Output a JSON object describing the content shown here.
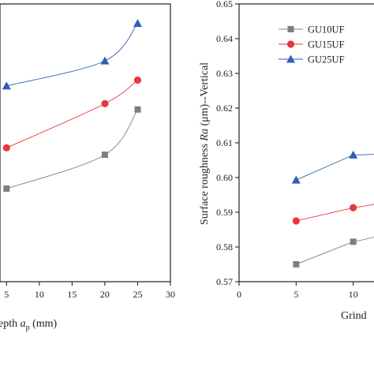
{
  "chart_data": [
    {
      "type": "line",
      "title": "",
      "xlabel_parts": {
        "pre": "epth ",
        "var": "a",
        "sub": "p",
        "post": " (mm)"
      },
      "ylabel": "",
      "x_ticks": [
        5,
        10,
        15,
        20,
        25,
        30
      ],
      "x_tick_labels": [
        "5",
        "10",
        "15",
        "20",
        "25",
        "30"
      ],
      "xlim": [
        4,
        30
      ],
      "ylim": [
        0,
        1
      ],
      "grid": false,
      "series": [
        {
          "name": "GU10UF",
          "color": "#7f7f7f",
          "marker": "square",
          "x": [
            5,
            20,
            25
          ],
          "y": [
            0.335,
            0.457,
            0.62
          ]
        },
        {
          "name": "GU15UF",
          "color": "#e8383d",
          "marker": "circle",
          "x": [
            5,
            20,
            25
          ],
          "y": [
            0.482,
            0.641,
            0.726
          ]
        },
        {
          "name": "GU25UF",
          "color": "#2f5fb0",
          "marker": "triangle",
          "x": [
            5,
            20,
            25
          ],
          "y": [
            0.705,
            0.795,
            0.93
          ]
        }
      ]
    },
    {
      "type": "line",
      "title": "",
      "xlabel": "Grind",
      "ylabel_parts": {
        "pre": "Surface roughness ",
        "var": "Ra",
        "post": " (μm)--Vertical"
      },
      "x_ticks": [
        0,
        5,
        10
      ],
      "x_tick_labels": [
        "0",
        "5",
        "10"
      ],
      "y_ticks": [
        0.57,
        0.58,
        0.59,
        0.6,
        0.61,
        0.62,
        0.63,
        0.64,
        0.65
      ],
      "y_tick_labels": [
        "0.57",
        "0.58",
        "0.59",
        "0.60",
        "0.61",
        "0.62",
        "0.63",
        "0.64",
        "0.65"
      ],
      "xlim": [
        0,
        15
      ],
      "ylim": [
        0.57,
        0.65
      ],
      "grid": false,
      "legend": "top-left",
      "series": [
        {
          "name": "GU10UF",
          "color": "#7f7f7f",
          "marker": "square",
          "x": [
            5,
            10
          ],
          "y": [
            0.575,
            0.5815
          ]
        },
        {
          "name": "GU15UF",
          "color": "#e8383d",
          "marker": "circle",
          "x": [
            5,
            10
          ],
          "y": [
            0.5875,
            0.5913
          ]
        },
        {
          "name": "GU25UF",
          "color": "#2f5fb0",
          "marker": "triangle",
          "x": [
            5,
            10
          ],
          "y": [
            0.5993,
            0.6065
          ]
        }
      ]
    }
  ]
}
